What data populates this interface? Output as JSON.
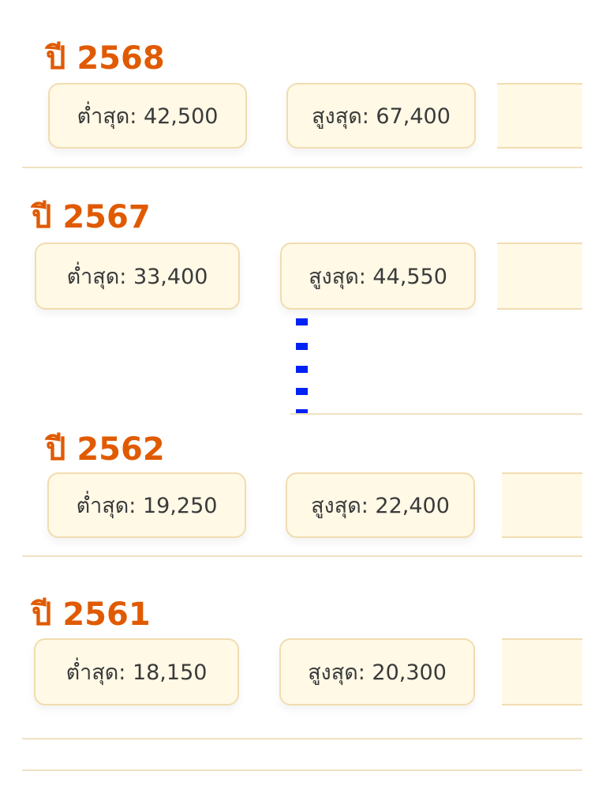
{
  "sections": [
    {
      "year_label": "ปี 2568",
      "low": "ต่ำสุด: 42,500",
      "high": "สูงสุด: 67,400"
    },
    {
      "year_label": "ปี 2567",
      "low": "ต่ำสุด: 33,400",
      "high": "สูงสุด: 44,550"
    },
    {
      "year_label": "ปี 2562",
      "low": "ต่ำสุด: 19,250",
      "high": "สูงสุด: 22,400"
    },
    {
      "year_label": "ปี 2561",
      "low": "ต่ำสุด: 18,150",
      "high": "สูงสุด: 20,300"
    }
  ],
  "colors": {
    "accent": "#E05A00",
    "card_bg": "#FFF9E6",
    "card_border": "#F0DDB0",
    "ellipsis": "#0022F5"
  },
  "gap_indicator_icon": "vertical-ellipsis-icon"
}
